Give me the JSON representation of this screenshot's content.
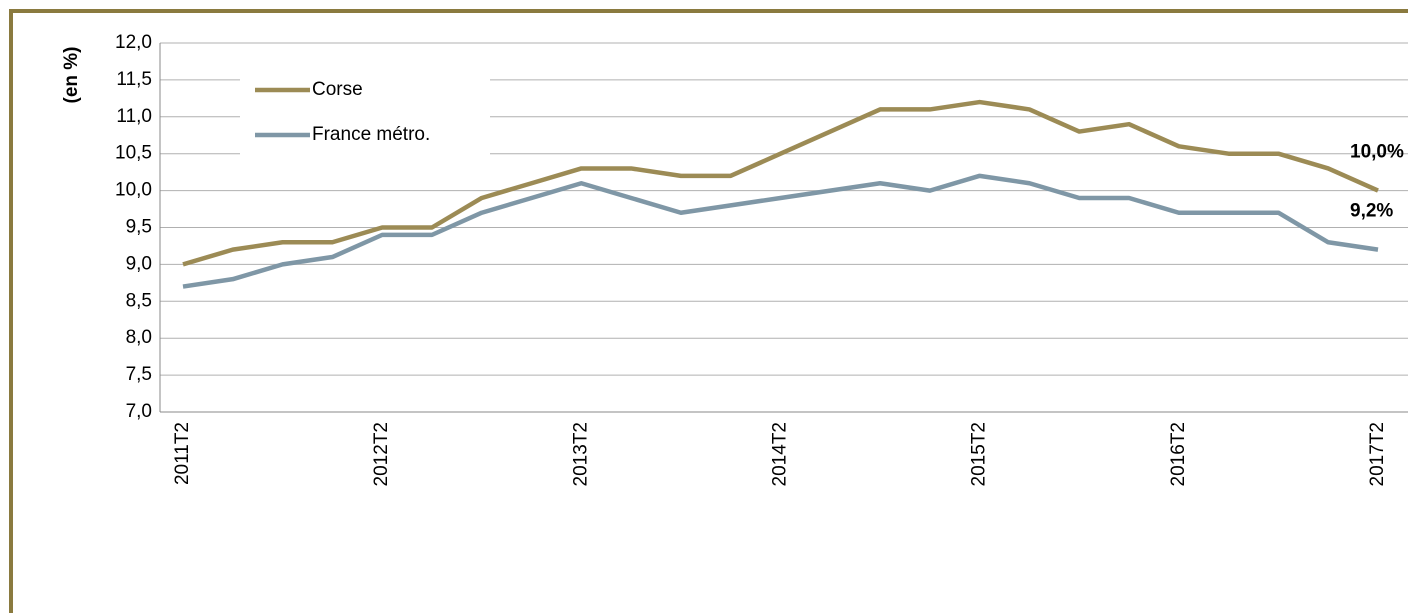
{
  "chart_data": {
    "type": "line",
    "y_label": "(en %)",
    "categories": [
      "2011T2",
      null,
      null,
      null,
      "2012T2",
      null,
      null,
      null,
      "2013T2",
      null,
      null,
      null,
      "2014T2",
      null,
      null,
      null,
      "2015T2",
      null,
      null,
      null,
      "2016T2",
      null,
      null,
      null,
      "2017T2"
    ],
    "series": [
      {
        "name": "Corse",
        "color": "#9c8b55",
        "label_color": "#9c8b55",
        "values": [
          9.0,
          9.2,
          9.3,
          9.3,
          9.5,
          9.5,
          9.9,
          10.1,
          10.3,
          10.3,
          10.2,
          10.2,
          10.5,
          10.8,
          11.1,
          11.1,
          11.2,
          11.1,
          10.8,
          10.9,
          10.6,
          10.5,
          10.5,
          10.3,
          10.0
        ],
        "value_labels": [
          null,
          null,
          null,
          null,
          null,
          null,
          null,
          null,
          null,
          null,
          null,
          null,
          null,
          null,
          null,
          null,
          null,
          null,
          null,
          null,
          null,
          null,
          null,
          null,
          "10,0%"
        ]
      },
      {
        "name": "France métro.",
        "color": "#7f97a6",
        "label_color": "#4c6e96",
        "values": [
          8.7,
          8.8,
          9.0,
          9.1,
          9.4,
          9.4,
          9.7,
          9.9,
          10.1,
          9.9,
          9.7,
          9.8,
          9.9,
          10.0,
          10.1,
          10.0,
          10.2,
          10.1,
          9.9,
          9.9,
          9.7,
          9.7,
          9.7,
          9.3,
          9.2
        ],
        "value_labels": [
          null,
          null,
          null,
          null,
          null,
          null,
          null,
          null,
          null,
          null,
          null,
          null,
          null,
          null,
          null,
          null,
          null,
          null,
          null,
          null,
          null,
          null,
          null,
          null,
          "9,2%"
        ]
      }
    ],
    "ylim": [
      7.0,
      12.0
    ],
    "yticks": [
      {
        "value": 7.0,
        "label": "7,0"
      },
      {
        "value": 7.5,
        "label": "7,5"
      },
      {
        "value": 8.0,
        "label": "8,0"
      },
      {
        "value": 8.5,
        "label": "8,5"
      },
      {
        "value": 9.0,
        "label": "9,0"
      },
      {
        "value": 9.5,
        "label": "9,5"
      },
      {
        "value": 10.0,
        "label": "10,0"
      },
      {
        "value": 10.5,
        "label": "10,5"
      },
      {
        "value": 11.0,
        "label": "11,0"
      },
      {
        "value": 11.5,
        "label": "11,5"
      },
      {
        "value": 12.0,
        "label": "12,0"
      }
    ],
    "grid": true
  }
}
